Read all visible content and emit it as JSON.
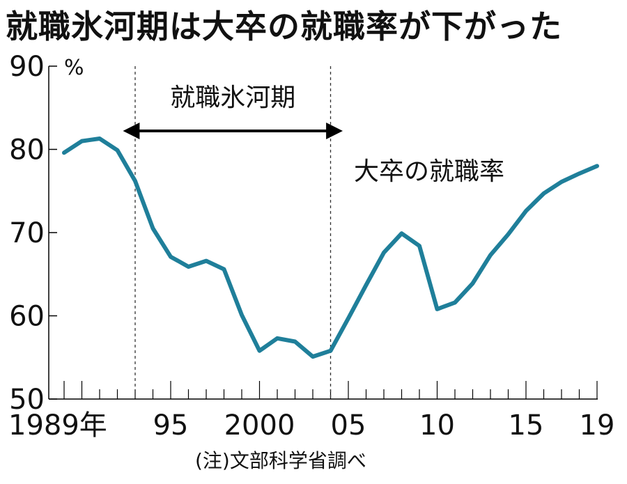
{
  "page": {
    "title": "就職氷河期は大卒の就職率が下がった",
    "note": "(注)文部科学省調べ"
  },
  "chart_data": {
    "type": "line",
    "title": "就職氷河期は大卒の就職率が下がった",
    "ylabel": "%",
    "xlabel": "",
    "ylim": [
      50,
      90
    ],
    "xlim": [
      1989,
      2019
    ],
    "y_ticks": [
      50,
      60,
      70,
      80,
      90
    ],
    "x_tick_labels": [
      {
        "x": 1989,
        "label": "1989年"
      },
      {
        "x": 1995,
        "label": "95"
      },
      {
        "x": 2000,
        "label": "2000"
      },
      {
        "x": 2005,
        "label": "05"
      },
      {
        "x": 2010,
        "label": "10"
      },
      {
        "x": 2015,
        "label": "15"
      },
      {
        "x": 2019,
        "label": "19"
      }
    ],
    "series": [
      {
        "name": "大卒の就職率",
        "color": "#1f7f9a",
        "x": [
          1989,
          1990,
          1991,
          1992,
          1993,
          1994,
          1995,
          1996,
          1997,
          1998,
          1999,
          2000,
          2001,
          2002,
          2003,
          2004,
          2005,
          2006,
          2007,
          2008,
          2009,
          2010,
          2011,
          2012,
          2013,
          2014,
          2015,
          2016,
          2017,
          2018,
          2019
        ],
        "y": [
          79.6,
          81.0,
          81.3,
          79.9,
          76.2,
          70.5,
          67.1,
          65.9,
          66.6,
          65.6,
          60.1,
          55.8,
          57.3,
          56.9,
          55.1,
          55.8,
          59.7,
          63.7,
          67.6,
          69.9,
          68.4,
          60.8,
          61.6,
          63.9,
          67.3,
          69.8,
          72.6,
          74.7,
          76.1,
          77.1,
          78.0
        ]
      }
    ],
    "annotations": [
      {
        "type": "range",
        "text": "就職氷河期",
        "from": 1993,
        "to": 2004
      }
    ],
    "grid": false,
    "legend": "none"
  }
}
